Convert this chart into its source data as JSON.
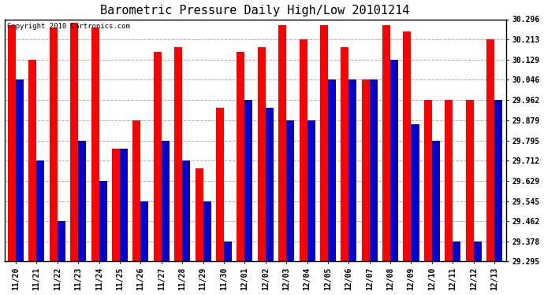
{
  "title": "Barometric Pressure Daily High/Low 20101214",
  "copyright": "Copyright 2010 Cartronics.com",
  "categories": [
    "11/20",
    "11/21",
    "11/22",
    "11/23",
    "11/24",
    "11/25",
    "11/26",
    "11/27",
    "11/28",
    "11/29",
    "11/30",
    "12/01",
    "12/02",
    "12/03",
    "12/04",
    "12/05",
    "12/06",
    "12/07",
    "12/08",
    "12/09",
    "12/10",
    "12/11",
    "12/12",
    "12/13"
  ],
  "highs": [
    30.27,
    30.129,
    30.262,
    30.28,
    30.262,
    29.762,
    29.879,
    30.162,
    30.179,
    29.679,
    29.93,
    30.162,
    30.179,
    30.27,
    30.213,
    30.27,
    30.179,
    30.046,
    30.27,
    30.246,
    29.962,
    29.962,
    29.962,
    30.213
  ],
  "lows": [
    30.046,
    29.712,
    29.462,
    29.795,
    29.629,
    29.762,
    29.545,
    29.795,
    29.712,
    29.545,
    29.378,
    29.962,
    29.93,
    29.879,
    29.879,
    30.046,
    30.046,
    30.046,
    30.129,
    29.862,
    29.795,
    29.379,
    29.379,
    29.962
  ],
  "high_color": "#ff0000",
  "low_color": "#0000cd",
  "bg_color": "#ffffff",
  "plot_bg_color": "#ffffff",
  "grid_color": "#b0b0b0",
  "ymin": 29.295,
  "ymax": 30.296,
  "yticks": [
    29.295,
    29.378,
    29.462,
    29.545,
    29.629,
    29.712,
    29.795,
    29.879,
    29.962,
    30.046,
    30.129,
    30.213,
    30.296
  ],
  "title_fontsize": 11,
  "tick_fontsize": 7,
  "copyright_fontsize": 6.5,
  "bar_width": 0.38,
  "fig_width": 6.9,
  "fig_height": 3.75
}
